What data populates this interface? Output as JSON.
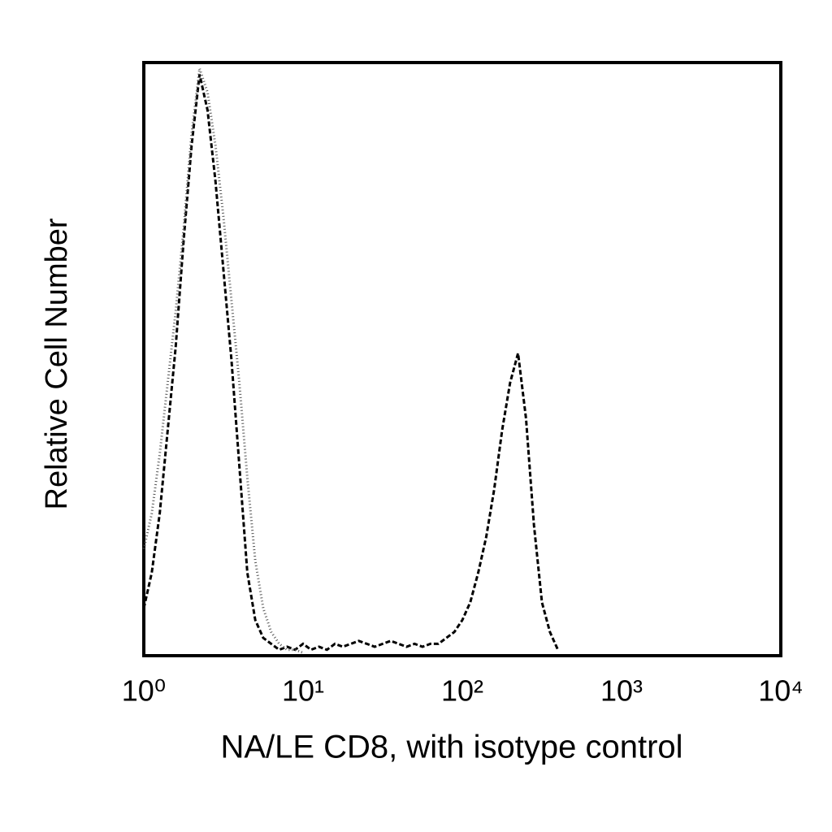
{
  "chart_data": {
    "type": "line",
    "xlabel": "NA/LE CD8, with isotype control",
    "ylabel": "Relative Cell Number",
    "xscale": "log",
    "xlim": [
      1,
      10000
    ],
    "xticks": [
      {
        "value": 1,
        "label": "10⁰"
      },
      {
        "value": 10,
        "label": "10¹"
      },
      {
        "value": 100,
        "label": "10²"
      },
      {
        "value": 1000,
        "label": "10³"
      },
      {
        "value": 10000,
        "label": "10⁴"
      }
    ],
    "ylim": [
      0,
      100
    ],
    "grid": false,
    "x": [
      1,
      1.122,
      1.259,
      1.413,
      1.585,
      1.778,
      1.995,
      2.239,
      2.512,
      2.818,
      3.162,
      3.548,
      3.981,
      4.467,
      5.012,
      5.623,
      6.31,
      7.079,
      7.943,
      8.913,
      10,
      11.22,
      12.59,
      14.13,
      15.85,
      17.78,
      19.95,
      22.39,
      25.12,
      28.18,
      31.62,
      35.48,
      39.81,
      44.67,
      50.12,
      56.23,
      63.1,
      70.79,
      79.43,
      89.13,
      100,
      112.2,
      125.9,
      141.3,
      158.5,
      177.8,
      199.5,
      223.9,
      251.2,
      281.8,
      316.2,
      354.8,
      398.1
    ],
    "series": [
      {
        "color": "#000000",
        "dash": "6,3",
        "values": [
          8,
          14,
          24,
          38,
          52,
          70,
          86,
          98,
          92,
          80,
          65,
          50,
          32,
          14,
          6,
          3,
          2,
          1,
          1.5,
          1,
          2,
          1,
          1.5,
          1,
          2,
          1.5,
          2,
          2.5,
          2,
          1.5,
          2,
          2.5,
          2,
          1.5,
          2,
          1.5,
          2,
          2,
          3,
          4,
          6,
          9,
          14,
          20,
          28,
          38,
          46,
          51,
          40,
          22,
          9,
          4,
          1
        ]
      },
      {
        "color": "#555555",
        "dash": "1,3",
        "values": [
          18,
          24,
          34,
          46,
          58,
          72,
          88,
          99,
          95,
          86,
          74,
          60,
          46,
          30,
          16,
          8,
          4,
          2,
          1,
          1,
          0.5,
          null,
          null,
          null,
          null,
          null,
          null,
          null,
          null,
          null,
          null,
          null,
          null,
          null,
          null,
          null,
          null,
          null,
          null,
          null,
          null,
          null,
          null,
          null,
          null,
          null,
          null,
          null,
          null,
          null,
          null,
          null,
          null
        ]
      }
    ]
  }
}
